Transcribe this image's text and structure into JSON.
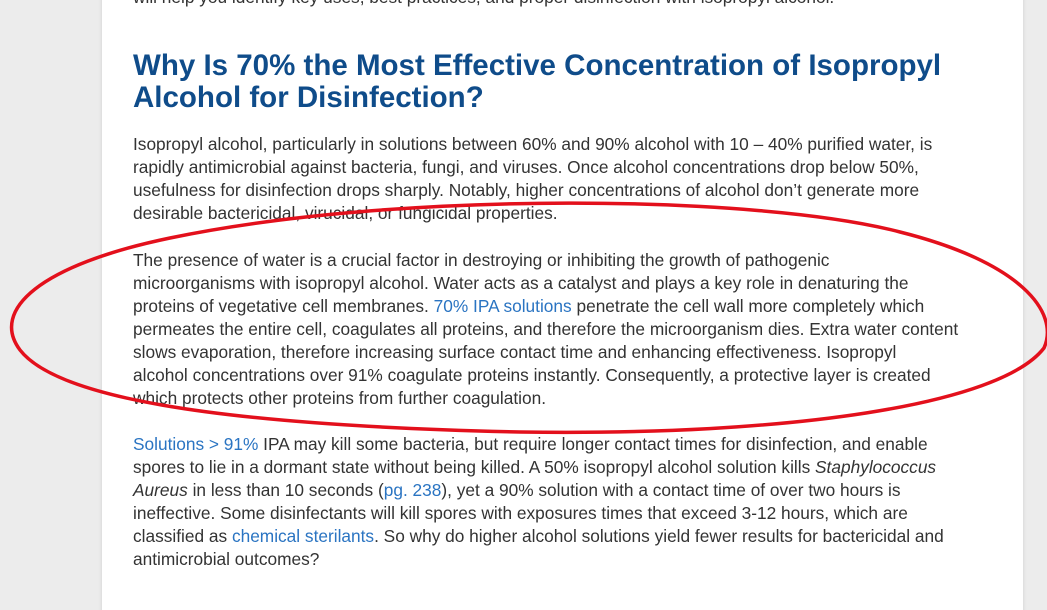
{
  "article": {
    "top_clipped_line": "will help you identify key uses, best practices, and proper disinfection with isopropyl alcohol.",
    "heading": {
      "line1": "Why Is 70% the Most Effective Concentration of Isopropyl",
      "line2": "Alcohol for Disinfection?"
    },
    "paragraph1": {
      "l1": "Isopropyl alcohol, particularly in solutions between 60% and 90% alcohol with 10 – 40% purified water, is",
      "l2": "rapidly antimicrobial against bacteria, fungi, and viruses. Once alcohol concentrations drop below 50%,",
      "l3": "usefulness for disinfection drops sharply. Notably, higher concentrations of alcohol don’t generate more",
      "l4": "desirable bactericidal, virucidal, or fungicidal properties."
    },
    "paragraph2": {
      "l1": "The presence of water is a crucial factor in destroying or inhibiting the growth of pathogenic",
      "l2": "microorganisms with isopropyl alcohol. Water acts as a catalyst and plays a key role in denaturing the",
      "l3_before": "proteins of vegetative cell membranes. ",
      "l3_link": "70% IPA solutions",
      "l3_after": " penetrate the cell wall more completely which",
      "l4": "permeates the entire cell, coagulates all proteins, and therefore the microorganism dies. Extra water content",
      "l5": "slows evaporation, therefore increasing surface contact time and enhancing effectiveness. Isopropyl",
      "l6": "alcohol concentrations over 91% coagulate proteins instantly. Consequently, a protective layer is created",
      "l7": "which protects other proteins from further coagulation."
    },
    "paragraph3": {
      "l1_link": "Solutions > 91%",
      "l1_after": " IPA may kill some bacteria, but require longer contact times for disinfection, and enable",
      "l2_before": "spores to lie in a dormant state without being killed. A 50% isopropyl alcohol solution kills ",
      "l2_italic": "Staphylococcus",
      "l3_italic": "Aureus",
      "l3_middle": " in less than 10 seconds (",
      "l3_link": "pg. 238",
      "l3_after": "), yet a 90% solution with a contact time of over two hours is",
      "l4": "ineffective. Some disinfectants will kill spores with exposures times that exceed 3-12 hours, which are",
      "l5_before": "classified as ",
      "l5_link": "chemical sterilants",
      "l5_after": ". So why do higher alcohol solutions yield fewer results for bactericidal and",
      "l6": "antimicrobial outcomes?"
    }
  },
  "colors": {
    "heading": "#0f4c8a",
    "body_text": "#333333",
    "link": "#2a74c2",
    "annotation_ellipse": "#e3101c",
    "page_background": "#ececec",
    "card_background": "#ffffff"
  }
}
